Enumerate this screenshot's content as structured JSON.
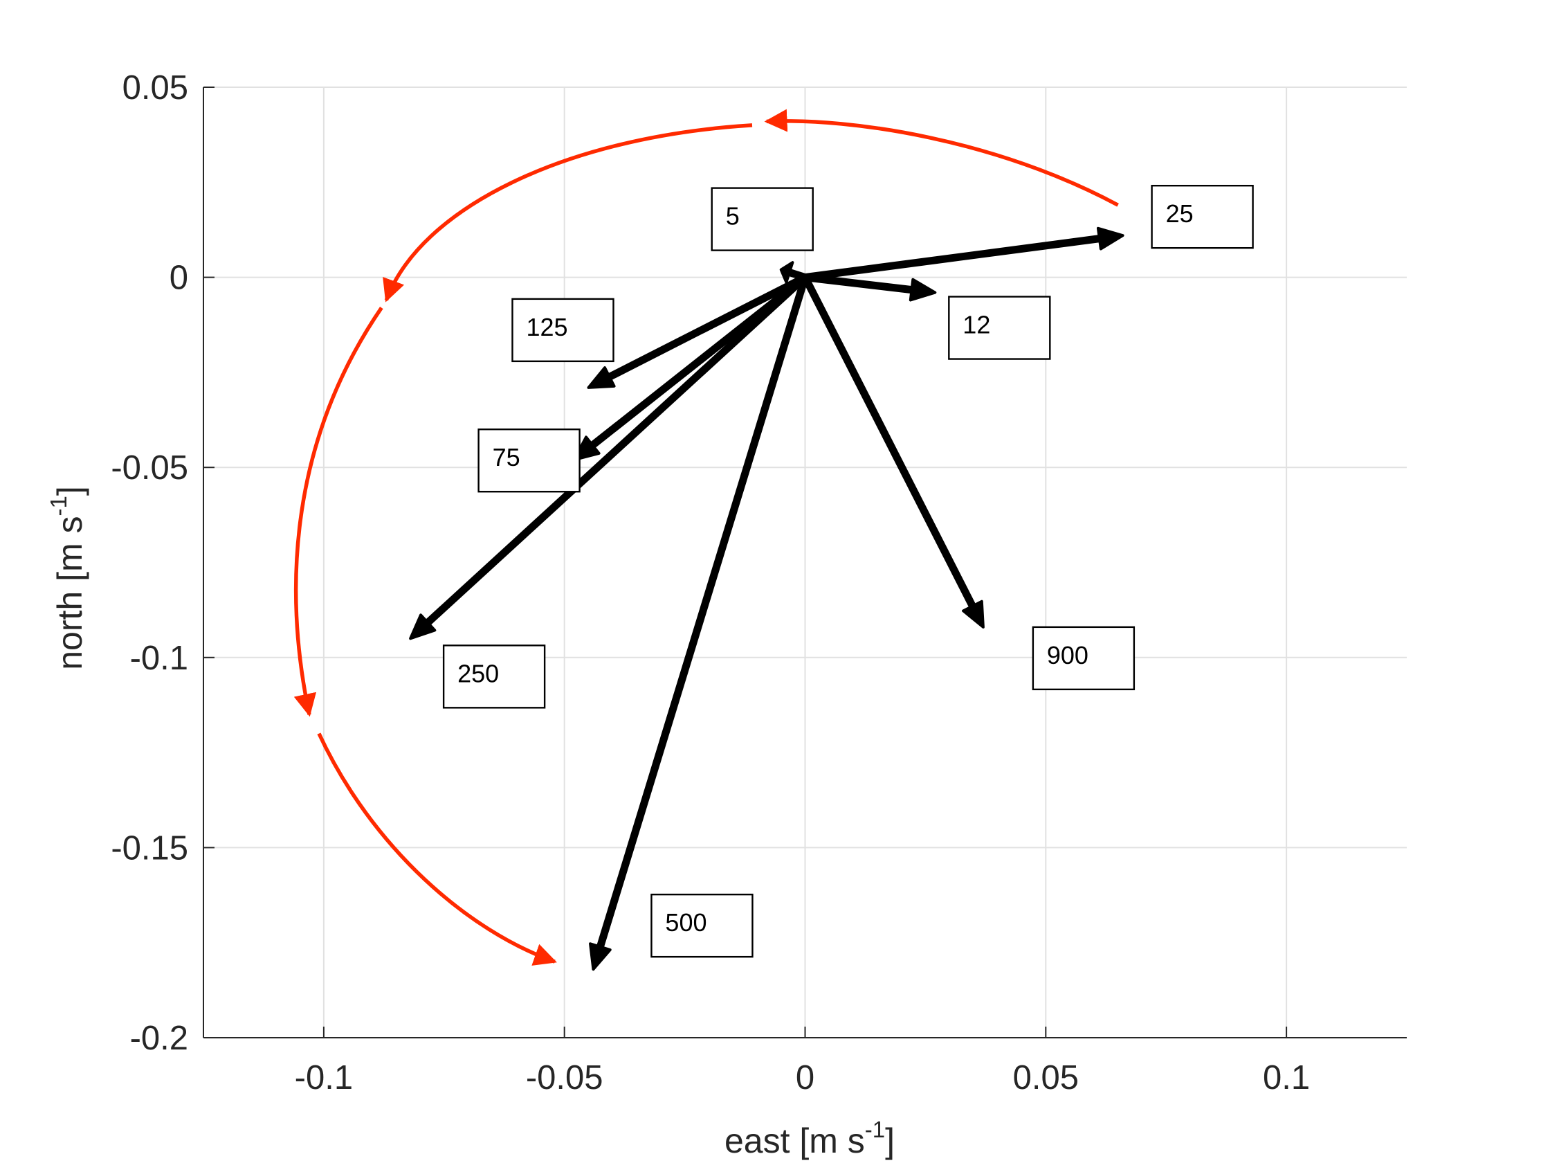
{
  "chart_data": {
    "type": "vector",
    "title": "",
    "xlabel": {
      "text": "east [m s",
      "sup": "-1",
      "close": "]"
    },
    "ylabel": {
      "text": "north [m s",
      "sup": "-1",
      "close": "]"
    },
    "xlim": [
      -0.125,
      0.125
    ],
    "ylim": [
      -0.2,
      0.05
    ],
    "xticks": [
      {
        "value": -0.1,
        "label": "-0.1"
      },
      {
        "value": -0.05,
        "label": "-0.05"
      },
      {
        "value": 0,
        "label": "0"
      },
      {
        "value": 0.05,
        "label": "0.05"
      },
      {
        "value": 0.1,
        "label": "0.1"
      }
    ],
    "yticks": [
      {
        "value": 0.05,
        "label": "0.05"
      },
      {
        "value": 0,
        "label": "0"
      },
      {
        "value": -0.05,
        "label": "-0.05"
      },
      {
        "value": -0.1,
        "label": "-0.1"
      },
      {
        "value": -0.15,
        "label": "-0.15"
      },
      {
        "value": -0.2,
        "label": "-0.2"
      }
    ],
    "grid": true,
    "origin": {
      "x": 0,
      "y": 0
    },
    "vectors": [
      {
        "label": "5",
        "u": -0.005,
        "v": 0.002
      },
      {
        "label": "12",
        "u": 0.027,
        "v": -0.004
      },
      {
        "label": "25",
        "u": 0.066,
        "v": 0.011
      },
      {
        "label": "75",
        "u": -0.048,
        "v": -0.048
      },
      {
        "label": "125",
        "u": -0.045,
        "v": -0.029
      },
      {
        "label": "250",
        "u": -0.082,
        "v": -0.095
      },
      {
        "label": "500",
        "u": -0.044,
        "v": -0.182
      },
      {
        "label": "900",
        "u": 0.037,
        "v": -0.092
      }
    ],
    "rotation_arrow": {
      "description_color": "#ff2a00",
      "segments": [
        [
          [
            0.065,
            0.019
          ],
          [
            0.04,
            0.036
          ],
          [
            0.01,
            0.042
          ],
          [
            -0.008,
            0.041
          ]
        ],
        [
          [
            -0.011,
            0.04
          ],
          [
            -0.05,
            0.037
          ],
          [
            -0.08,
            0.018
          ],
          [
            -0.087,
            -0.006
          ]
        ],
        [
          [
            -0.088,
            -0.008
          ],
          [
            -0.108,
            -0.045
          ],
          [
            -0.108,
            -0.085
          ],
          [
            -0.103,
            -0.115
          ]
        ],
        [
          [
            -0.101,
            -0.12
          ],
          [
            -0.09,
            -0.15
          ],
          [
            -0.07,
            -0.172
          ],
          [
            -0.052,
            -0.18
          ]
        ]
      ]
    },
    "colors": {
      "vector": "#000000",
      "rotation": "#ff2a00",
      "grid": "#e1e1e1",
      "axis": "#262626"
    }
  }
}
